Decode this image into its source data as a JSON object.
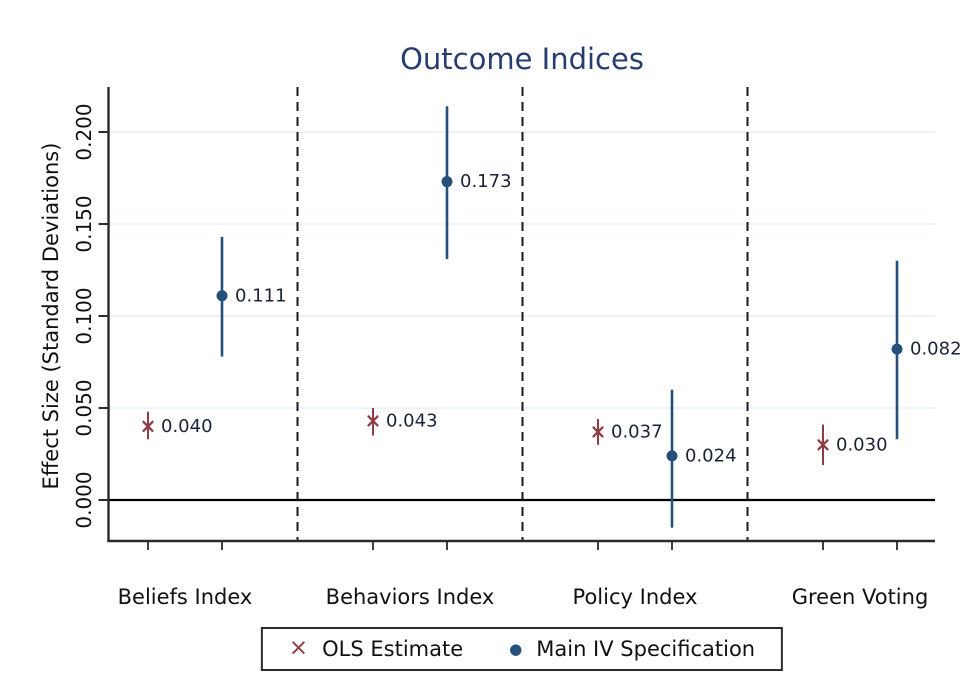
{
  "title": "Outcome Indices",
  "colors": {
    "title_text": "#283d6f",
    "ols_maroon": "#8e3d45",
    "iv_navy": "#25507c",
    "gridline": "#e7edf3",
    "axis": "#2b2b2b",
    "zero_line": "#000000",
    "value_label_text": "#1b2335",
    "tick_text": "#111111"
  },
  "legend": {
    "items": [
      {
        "label": "OLS Estimate",
        "glyph": "×"
      },
      {
        "label": "Main IV Specification",
        "glyph": "●"
      }
    ]
  },
  "chart_data": {
    "type": "scatter",
    "subtype": "coefficient-plot-with-confidence-intervals",
    "title": "Outcome Indices",
    "ylabel": "Effect Size (Standard Deviations)",
    "xlabel": "",
    "ylim": [
      -0.022,
      0.224
    ],
    "yticks": [
      0.0,
      0.05,
      0.1,
      0.15,
      0.2
    ],
    "ytick_labels": [
      "0.000",
      "0.050",
      "0.100",
      "0.150",
      "0.200"
    ],
    "grid": true,
    "zero_line": true,
    "dashed_separators_between_categories": true,
    "legend_position": "bottom",
    "categories": [
      "Beliefs Index",
      "Behaviors Index",
      "Policy Index",
      "Green Voting"
    ],
    "series": [
      {
        "name": "OLS Estimate",
        "marker": "x",
        "color": "#8e3d45",
        "values": [
          0.04,
          0.043,
          0.037,
          0.03
        ],
        "labels": [
          "0.040",
          "0.043",
          "0.037",
          "0.030"
        ],
        "ci_low": [
          0.033,
          0.035,
          0.03,
          0.019
        ],
        "ci_high": [
          0.048,
          0.05,
          0.044,
          0.041
        ]
      },
      {
        "name": "Main IV Specification",
        "marker": "circle",
        "color": "#25507c",
        "values": [
          0.111,
          0.173,
          0.024,
          0.082
        ],
        "labels": [
          "0.111",
          "0.173",
          "0.024",
          "0.082"
        ],
        "ci_low": [
          0.078,
          0.131,
          -0.015,
          0.033
        ],
        "ci_high": [
          0.143,
          0.214,
          0.06,
          0.13
        ]
      }
    ]
  }
}
